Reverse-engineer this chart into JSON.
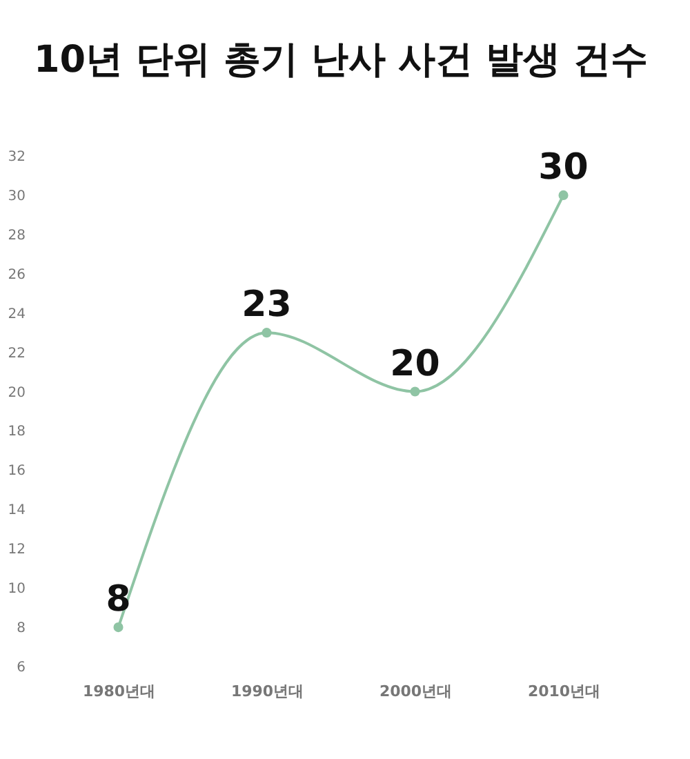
{
  "chart_data": {
    "type": "line",
    "title": "10년 단위 총기 난사 사건 발생 건수",
    "categories": [
      "1980년대",
      "1990년대",
      "2000년대",
      "2010년대"
    ],
    "series": [
      {
        "color": "#8fc4a4",
        "values": [
          8,
          23,
          20,
          30
        ]
      }
    ],
    "ylim": [
      6,
      32
    ],
    "yticks": [
      6,
      8,
      10,
      12,
      14,
      16,
      18,
      20,
      22,
      24,
      26,
      28,
      30,
      32
    ],
    "grid": false,
    "marker": "circle",
    "line_style": "solid",
    "data_labels": true
  }
}
